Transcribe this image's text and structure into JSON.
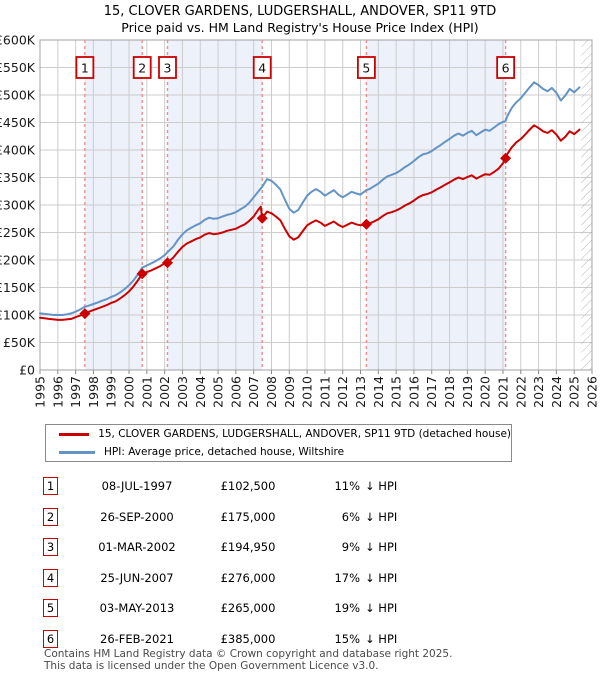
{
  "title": "15, CLOVER GARDENS, LUDGERSHALL, ANDOVER, SP11 9TD",
  "subtitle": "Price paid vs. HM Land Registry's House Price Index (HPI)",
  "legend": {
    "series1": "15, CLOVER GARDENS, LUDGERSHALL, ANDOVER, SP11 9TD (detached house)",
    "series2": "HPI: Average price, detached house, Wiltshire"
  },
  "footer": {
    "line1": "Contains HM Land Registry data © Crown copyright and database right 2025.",
    "line2": "This data is licensed under the Open Government Licence v3.0."
  },
  "colors": {
    "price_line": "#cc0000",
    "hpi_line": "#6494c6",
    "sale_dash": "#f28c8c",
    "band_fill": "#edf1fa",
    "grid": "#cccccc",
    "plot_border": "#a0a0a0",
    "badge_border": "#cc0000",
    "hatch_line": "#b5b5b5",
    "tick": "#888888",
    "label_text": "#1a1a1a"
  },
  "chart_data": {
    "type": "line",
    "title": "15, CLOVER GARDENS, LUDGERSHALL, ANDOVER, SP11 9TD",
    "subtitle": "Price paid vs. HM Land Registry's House Price Index (HPI)",
    "xlabel": "",
    "ylabel": "",
    "xlim": [
      1995,
      2026
    ],
    "ylim": [
      0,
      600000
    ],
    "grid": true,
    "legend_position": "below",
    "y_ticks": [
      {
        "value": 0,
        "label": "£0"
      },
      {
        "value": 50,
        "label": "£50K"
      },
      {
        "value": 100,
        "label": "£100K"
      },
      {
        "value": 150,
        "label": "£150K"
      },
      {
        "value": 200,
        "label": "£200K"
      },
      {
        "value": 250,
        "label": "£250K"
      },
      {
        "value": 300,
        "label": "£300K"
      },
      {
        "value": 350,
        "label": "£350K"
      },
      {
        "value": 400,
        "label": "£400K"
      },
      {
        "value": 450,
        "label": "£450K"
      },
      {
        "value": 500,
        "label": "£500K"
      },
      {
        "value": 550,
        "label": "£550K"
      },
      {
        "value": 600,
        "label": "£600K"
      }
    ],
    "x_ticks": [
      1995,
      1996,
      1997,
      1998,
      1999,
      2000,
      2001,
      2002,
      2003,
      2004,
      2005,
      2006,
      2007,
      2008,
      2009,
      2010,
      2011,
      2012,
      2013,
      2014,
      2015,
      2016,
      2017,
      2018,
      2019,
      2020,
      2021,
      2022,
      2023,
      2024,
      2025,
      2026
    ],
    "future_hatch_from": 2025.4,
    "series": [
      {
        "name": "15, CLOVER GARDENS, LUDGERSHALL, ANDOVER, SP11 9TD (detached house)",
        "color": "#cc0000",
        "unit": "£K",
        "points": [
          [
            1995.0,
            95
          ],
          [
            1995.25,
            94
          ],
          [
            1995.5,
            93
          ],
          [
            1995.75,
            92
          ],
          [
            1996.0,
            91
          ],
          [
            1996.25,
            91
          ],
          [
            1996.5,
            92
          ],
          [
            1996.75,
            93
          ],
          [
            1997.0,
            96
          ],
          [
            1997.25,
            99
          ],
          [
            1997.52,
            102.5
          ],
          [
            1997.75,
            106
          ],
          [
            1998.0,
            109
          ],
          [
            1998.25,
            112
          ],
          [
            1998.5,
            115
          ],
          [
            1998.75,
            118
          ],
          [
            1999.0,
            122
          ],
          [
            1999.25,
            125
          ],
          [
            1999.5,
            130
          ],
          [
            1999.75,
            136
          ],
          [
            2000.0,
            143
          ],
          [
            2000.25,
            152
          ],
          [
            2000.5,
            163
          ],
          [
            2000.74,
            175
          ],
          [
            2001.0,
            178
          ],
          [
            2001.25,
            181
          ],
          [
            2001.5,
            185
          ],
          [
            2001.75,
            189
          ],
          [
            2002.0,
            194
          ],
          [
            2002.16,
            194.95
          ],
          [
            2002.5,
            205
          ],
          [
            2002.75,
            215
          ],
          [
            2003.0,
            224
          ],
          [
            2003.25,
            230
          ],
          [
            2003.5,
            234
          ],
          [
            2003.75,
            238
          ],
          [
            2004.0,
            241
          ],
          [
            2004.25,
            246
          ],
          [
            2004.5,
            249
          ],
          [
            2004.75,
            247
          ],
          [
            2005.0,
            248
          ],
          [
            2005.25,
            250
          ],
          [
            2005.5,
            253
          ],
          [
            2005.75,
            255
          ],
          [
            2006.0,
            257
          ],
          [
            2006.25,
            261
          ],
          [
            2006.5,
            265
          ],
          [
            2006.75,
            271
          ],
          [
            2007.0,
            279
          ],
          [
            2007.25,
            291
          ],
          [
            2007.4,
            297
          ],
          [
            2007.48,
            276
          ],
          [
            2007.75,
            288
          ],
          [
            2008.0,
            285
          ],
          [
            2008.25,
            279
          ],
          [
            2008.5,
            272
          ],
          [
            2008.75,
            257
          ],
          [
            2009.0,
            243
          ],
          [
            2009.25,
            237
          ],
          [
            2009.5,
            241
          ],
          [
            2009.75,
            252
          ],
          [
            2010.0,
            263
          ],
          [
            2010.25,
            268
          ],
          [
            2010.5,
            272
          ],
          [
            2010.75,
            268
          ],
          [
            2011.0,
            262
          ],
          [
            2011.25,
            266
          ],
          [
            2011.5,
            270
          ],
          [
            2011.75,
            264
          ],
          [
            2012.0,
            260
          ],
          [
            2012.25,
            264
          ],
          [
            2012.5,
            268
          ],
          [
            2012.75,
            265
          ],
          [
            2013.0,
            263
          ],
          [
            2013.33,
            265
          ],
          [
            2013.5,
            266
          ],
          [
            2013.75,
            270
          ],
          [
            2014.0,
            274
          ],
          [
            2014.25,
            280
          ],
          [
            2014.5,
            285
          ],
          [
            2014.75,
            287
          ],
          [
            2015.0,
            290
          ],
          [
            2015.25,
            294
          ],
          [
            2015.5,
            299
          ],
          [
            2015.75,
            303
          ],
          [
            2016.0,
            308
          ],
          [
            2016.25,
            314
          ],
          [
            2016.5,
            318
          ],
          [
            2016.75,
            320
          ],
          [
            2017.0,
            323
          ],
          [
            2017.25,
            328
          ],
          [
            2017.5,
            332
          ],
          [
            2017.75,
            337
          ],
          [
            2018.0,
            341
          ],
          [
            2018.25,
            346
          ],
          [
            2018.5,
            350
          ],
          [
            2018.75,
            347
          ],
          [
            2019.0,
            351
          ],
          [
            2019.25,
            354
          ],
          [
            2019.5,
            348
          ],
          [
            2019.75,
            352
          ],
          [
            2020.0,
            356
          ],
          [
            2020.25,
            355
          ],
          [
            2020.5,
            360
          ],
          [
            2020.75,
            366
          ],
          [
            2021.0,
            376
          ],
          [
            2021.15,
            385
          ],
          [
            2021.25,
            393
          ],
          [
            2021.5,
            405
          ],
          [
            2021.75,
            414
          ],
          [
            2022.0,
            420
          ],
          [
            2022.25,
            428
          ],
          [
            2022.5,
            437
          ],
          [
            2022.75,
            445
          ],
          [
            2023.0,
            440
          ],
          [
            2023.25,
            434
          ],
          [
            2023.5,
            431
          ],
          [
            2023.75,
            436
          ],
          [
            2024.0,
            428
          ],
          [
            2024.25,
            417
          ],
          [
            2024.5,
            424
          ],
          [
            2024.75,
            434
          ],
          [
            2025.0,
            429
          ],
          [
            2025.3,
            437
          ]
        ]
      },
      {
        "name": "HPI: Average price, detached house, Wiltshire",
        "color": "#6494c6",
        "unit": "£K",
        "points": [
          [
            1995.0,
            103
          ],
          [
            1995.25,
            102
          ],
          [
            1995.5,
            101
          ],
          [
            1995.75,
            100
          ],
          [
            1996.0,
            100
          ],
          [
            1996.25,
            100
          ],
          [
            1996.5,
            101
          ],
          [
            1996.75,
            103
          ],
          [
            1997.0,
            106
          ],
          [
            1997.25,
            110
          ],
          [
            1997.52,
            115
          ],
          [
            1997.75,
            117
          ],
          [
            1998.0,
            120
          ],
          [
            1998.25,
            123
          ],
          [
            1998.5,
            126
          ],
          [
            1998.75,
            129
          ],
          [
            1999.0,
            133
          ],
          [
            1999.25,
            136
          ],
          [
            1999.5,
            141
          ],
          [
            1999.75,
            147
          ],
          [
            2000.0,
            154
          ],
          [
            2000.25,
            163
          ],
          [
            2000.5,
            174
          ],
          [
            2000.74,
            186
          ],
          [
            2001.0,
            190
          ],
          [
            2001.25,
            194
          ],
          [
            2001.5,
            198
          ],
          [
            2001.75,
            203
          ],
          [
            2002.0,
            209
          ],
          [
            2002.16,
            214
          ],
          [
            2002.5,
            225
          ],
          [
            2002.75,
            237
          ],
          [
            2003.0,
            247
          ],
          [
            2003.25,
            254
          ],
          [
            2003.5,
            259
          ],
          [
            2003.75,
            263
          ],
          [
            2004.0,
            267
          ],
          [
            2004.25,
            273
          ],
          [
            2004.5,
            277
          ],
          [
            2004.75,
            275
          ],
          [
            2005.0,
            276
          ],
          [
            2005.25,
            279
          ],
          [
            2005.5,
            282
          ],
          [
            2005.75,
            284
          ],
          [
            2006.0,
            287
          ],
          [
            2006.25,
            292
          ],
          [
            2006.5,
            297
          ],
          [
            2006.75,
            304
          ],
          [
            2007.0,
            314
          ],
          [
            2007.25,
            324
          ],
          [
            2007.48,
            333
          ],
          [
            2007.75,
            347
          ],
          [
            2008.0,
            344
          ],
          [
            2008.25,
            337
          ],
          [
            2008.5,
            328
          ],
          [
            2008.75,
            310
          ],
          [
            2009.0,
            293
          ],
          [
            2009.25,
            286
          ],
          [
            2009.5,
            291
          ],
          [
            2009.75,
            304
          ],
          [
            2010.0,
            317
          ],
          [
            2010.25,
            324
          ],
          [
            2010.5,
            329
          ],
          [
            2010.75,
            324
          ],
          [
            2011.0,
            317
          ],
          [
            2011.25,
            322
          ],
          [
            2011.5,
            327
          ],
          [
            2011.75,
            319
          ],
          [
            2012.0,
            314
          ],
          [
            2012.25,
            319
          ],
          [
            2012.5,
            324
          ],
          [
            2012.75,
            321
          ],
          [
            2013.0,
            319
          ],
          [
            2013.33,
            327
          ],
          [
            2013.5,
            329
          ],
          [
            2013.75,
            334
          ],
          [
            2014.0,
            339
          ],
          [
            2014.25,
            346
          ],
          [
            2014.5,
            352
          ],
          [
            2014.75,
            355
          ],
          [
            2015.0,
            358
          ],
          [
            2015.25,
            363
          ],
          [
            2015.5,
            369
          ],
          [
            2015.75,
            374
          ],
          [
            2016.0,
            380
          ],
          [
            2016.25,
            387
          ],
          [
            2016.5,
            392
          ],
          [
            2016.75,
            394
          ],
          [
            2017.0,
            398
          ],
          [
            2017.25,
            404
          ],
          [
            2017.5,
            409
          ],
          [
            2017.75,
            415
          ],
          [
            2018.0,
            420
          ],
          [
            2018.25,
            426
          ],
          [
            2018.5,
            430
          ],
          [
            2018.75,
            426
          ],
          [
            2019.0,
            431
          ],
          [
            2019.25,
            435
          ],
          [
            2019.5,
            427
          ],
          [
            2019.75,
            432
          ],
          [
            2020.0,
            437
          ],
          [
            2020.25,
            435
          ],
          [
            2020.5,
            441
          ],
          [
            2020.75,
            447
          ],
          [
            2021.0,
            451
          ],
          [
            2021.15,
            453
          ],
          [
            2021.25,
            462
          ],
          [
            2021.5,
            477
          ],
          [
            2021.75,
            487
          ],
          [
            2022.0,
            494
          ],
          [
            2022.25,
            504
          ],
          [
            2022.5,
            514
          ],
          [
            2022.75,
            523
          ],
          [
            2023.0,
            518
          ],
          [
            2023.25,
            511
          ],
          [
            2023.5,
            507
          ],
          [
            2023.75,
            513
          ],
          [
            2024.0,
            504
          ],
          [
            2024.25,
            490
          ],
          [
            2024.5,
            499
          ],
          [
            2024.75,
            511
          ],
          [
            2025.0,
            505
          ],
          [
            2025.3,
            514
          ]
        ]
      }
    ],
    "sales": [
      {
        "n": "1",
        "date": "08-JUL-1997",
        "price": "£102,500",
        "pct": "11%",
        "rel": "↓ HPI",
        "x": 1997.52,
        "value_k": 102.5
      },
      {
        "n": "2",
        "date": "26-SEP-2000",
        "price": "£175,000",
        "pct": "6%",
        "rel": "↓ HPI",
        "x": 2000.74,
        "value_k": 175
      },
      {
        "n": "3",
        "date": "01-MAR-2002",
        "price": "£194,950",
        "pct": "9%",
        "rel": "↓ HPI",
        "x": 2002.16,
        "value_k": 194.95
      },
      {
        "n": "4",
        "date": "25-JUN-2007",
        "price": "£276,000",
        "pct": "17%",
        "rel": "↓ HPI",
        "x": 2007.48,
        "value_k": 276
      },
      {
        "n": "5",
        "date": "03-MAY-2013",
        "price": "£265,000",
        "pct": "19%",
        "rel": "↓ HPI",
        "x": 2013.33,
        "value_k": 265
      },
      {
        "n": "6",
        "date": "26-FEB-2021",
        "price": "£385,000",
        "pct": "15%",
        "rel": "↓ HPI",
        "x": 2021.15,
        "value_k": 385
      }
    ],
    "shaded_bands_between_sales": [
      [
        0,
        1
      ],
      [
        2,
        3
      ],
      [
        4,
        5
      ]
    ]
  }
}
